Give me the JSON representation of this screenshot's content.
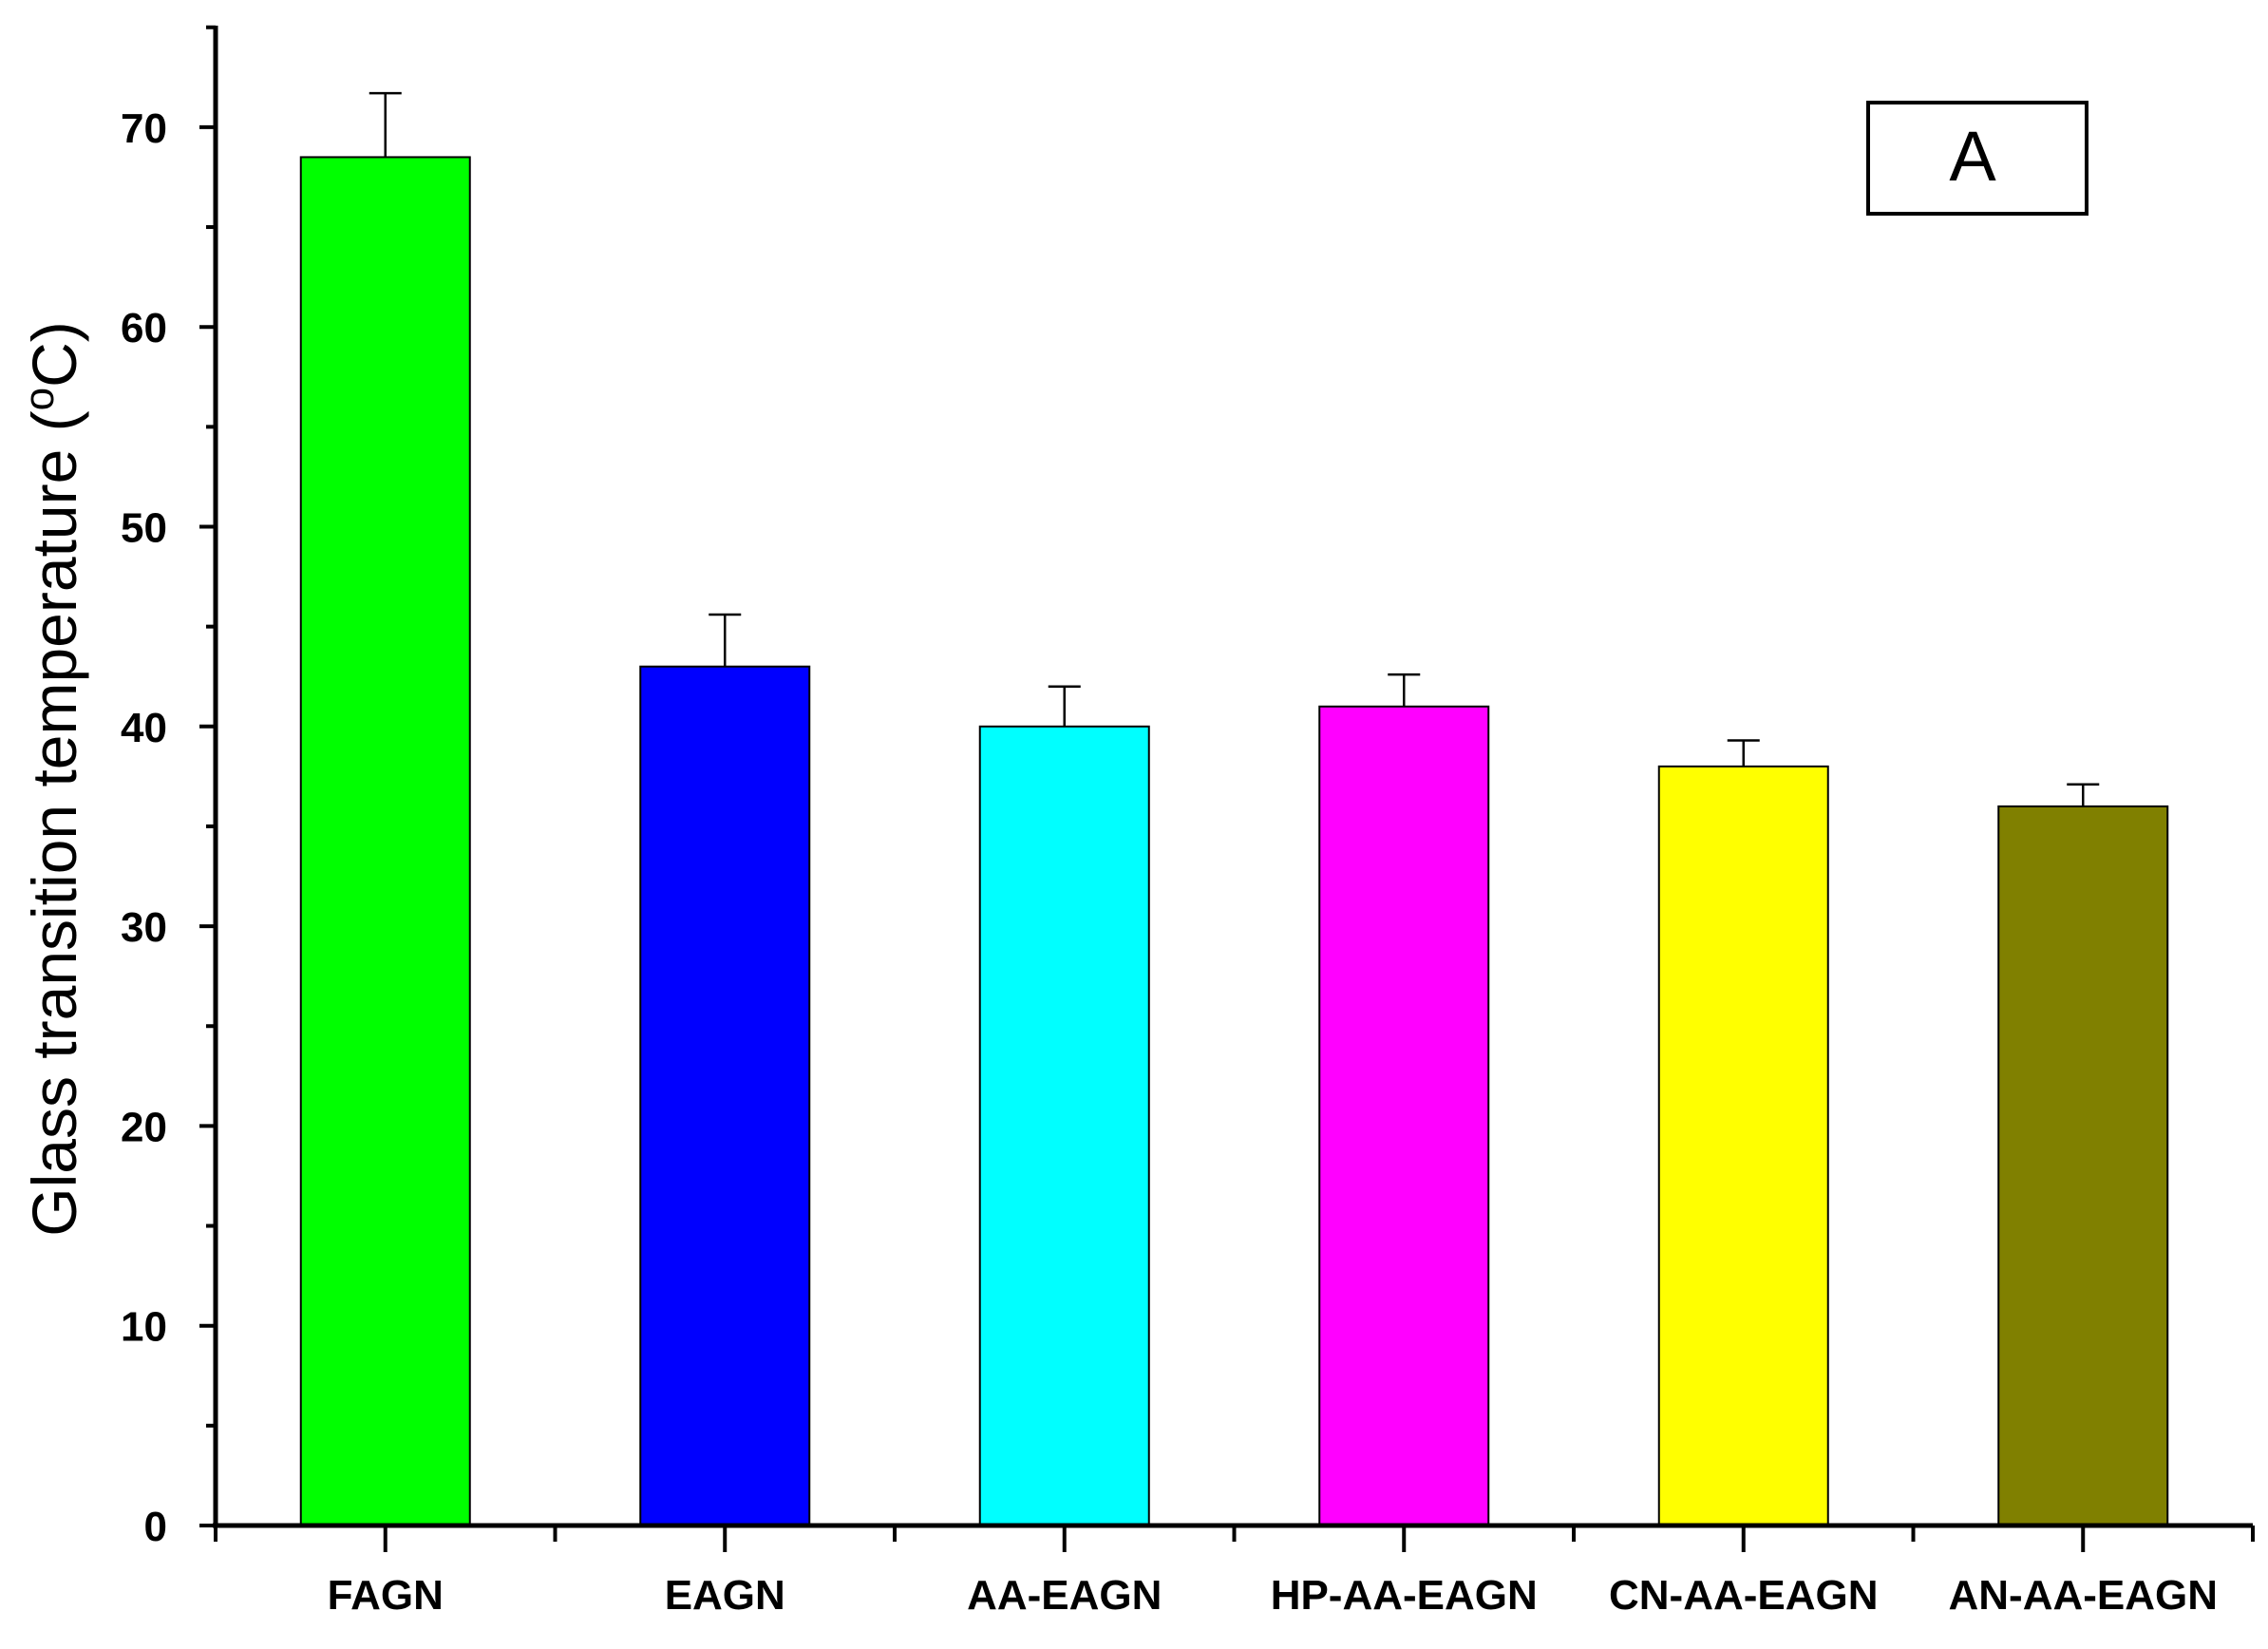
{
  "chart_data": {
    "type": "bar",
    "categories": [
      "FAGN",
      "EAGN",
      "AA-EAGN",
      "HP-AA-EAGN",
      "CN-AA-EAGN",
      "AN-AA-EAGN"
    ],
    "values": [
      68.5,
      43.0,
      40.0,
      41.0,
      38.0,
      36.0
    ],
    "errors": [
      3.2,
      2.6,
      2.0,
      1.6,
      1.3,
      1.1
    ],
    "colors": [
      "#00ff00",
      "#0000ff",
      "#00ffff",
      "#ff00ff",
      "#ffff00",
      "#808000"
    ],
    "ylabel": "Glass transition temperature (°C)",
    "ylim": [
      0,
      75
    ],
    "yticks": [
      0,
      10,
      20,
      30,
      40,
      50,
      60,
      70
    ],
    "annotation": "A",
    "grid": false
  }
}
